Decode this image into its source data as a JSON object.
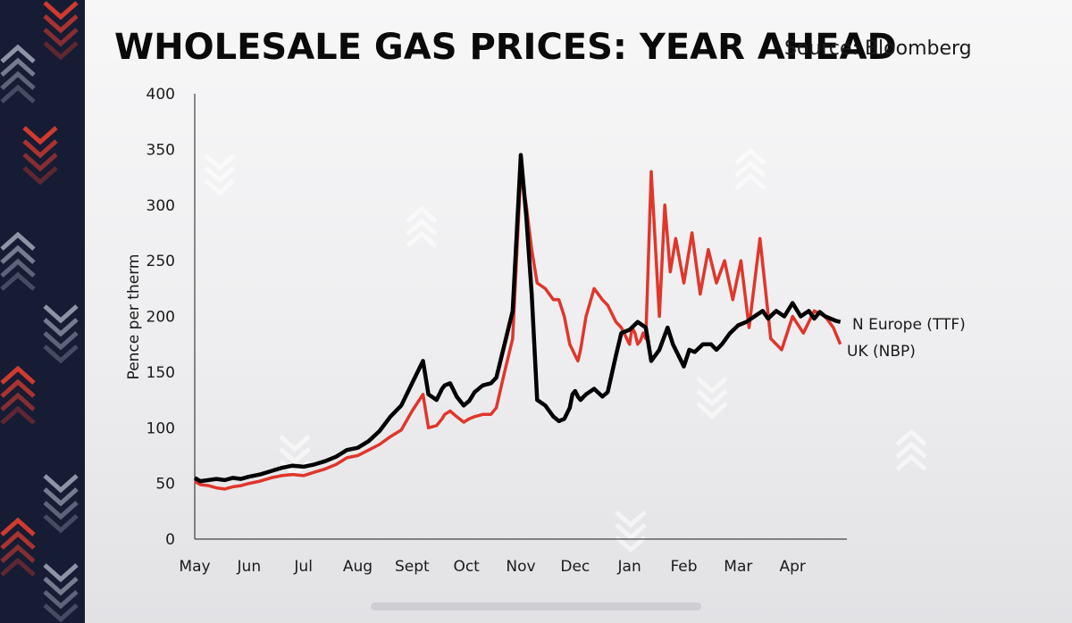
{
  "colors": {
    "side_band": "#151c33",
    "chevron_red": "#d03a2f",
    "chevron_light": "#8e93a6",
    "uk_nbp": "#e0362b",
    "n_europe_ttf": "#000000"
  },
  "chart_data": {
    "type": "line",
    "title": "WHOLESALE GAS PRICES: YEAR AHEAD",
    "source": "Source: Bloomberg",
    "ylabel": "Pence per therm",
    "xlabel": "",
    "ylim": [
      0,
      400
    ],
    "yticks": [
      "0",
      "50",
      "100",
      "150",
      "200",
      "250",
      "300",
      "350",
      "400"
    ],
    "ytick_values": [
      0,
      50,
      100,
      150,
      200,
      250,
      300,
      350,
      400
    ],
    "xlim": [
      0,
      12
    ],
    "months": [
      "May",
      "Jun",
      "Jul",
      "Aug",
      "Sept",
      "Oct",
      "Nov",
      "Dec",
      "Jan",
      "Feb",
      "Mar",
      "Apr"
    ],
    "month_positions": [
      0,
      1,
      2,
      3,
      4,
      5,
      6,
      7,
      8,
      9,
      10,
      11
    ],
    "series": [
      {
        "name": "N Europe (TTF)",
        "legend_label": "N Europe (TTF)",
        "x": [
          0,
          0.1,
          0.25,
          0.4,
          0.55,
          0.7,
          0.85,
          1.0,
          1.2,
          1.4,
          1.6,
          1.8,
          2.0,
          2.2,
          2.4,
          2.6,
          2.8,
          3.0,
          3.2,
          3.4,
          3.6,
          3.8,
          4.0,
          4.2,
          4.3,
          4.45,
          4.55,
          4.6,
          4.7,
          4.82,
          4.95,
          5.05,
          5.15,
          5.3,
          5.45,
          5.55,
          5.7,
          5.85,
          6.0,
          6.1,
          6.2,
          6.3,
          6.45,
          6.6,
          6.7,
          6.8,
          6.9,
          6.95,
          7.0,
          7.05,
          7.1,
          7.2,
          7.35,
          7.5,
          7.6,
          7.75,
          7.85,
          8.0,
          8.15,
          8.3,
          8.4,
          8.55,
          8.7,
          8.8,
          8.95,
          9.0,
          9.1,
          9.2,
          9.35,
          9.5,
          9.6,
          9.7,
          9.85,
          10.0,
          10.15,
          10.3,
          10.45,
          10.55,
          10.7,
          10.85,
          11.0,
          11.15,
          11.3,
          11.4,
          11.5,
          11.6,
          11.7,
          11.8,
          11.88
        ],
        "values": [
          55,
          52,
          53,
          54,
          53,
          55,
          54,
          56,
          58,
          61,
          64,
          66,
          65,
          67,
          70,
          74,
          80,
          82,
          88,
          97,
          110,
          120,
          140,
          160,
          130,
          125,
          135,
          138,
          140,
          128,
          120,
          124,
          132,
          138,
          140,
          145,
          175,
          205,
          345,
          290,
          220,
          125,
          120,
          110,
          106,
          108,
          118,
          130,
          133,
          128,
          125,
          130,
          135,
          128,
          132,
          165,
          185,
          188,
          195,
          190,
          160,
          170,
          190,
          175,
          160,
          155,
          170,
          168,
          175,
          175,
          170,
          175,
          185,
          192,
          195,
          200,
          205,
          198,
          205,
          200,
          212,
          200,
          205,
          198,
          204,
          200,
          198,
          196,
          195
        ]
      },
      {
        "name": "UK (NBP)",
        "legend_label": "UK (NBP)",
        "x": [
          0,
          0.1,
          0.25,
          0.4,
          0.55,
          0.7,
          0.85,
          1.0,
          1.2,
          1.4,
          1.6,
          1.8,
          2.0,
          2.2,
          2.4,
          2.6,
          2.8,
          3.0,
          3.2,
          3.4,
          3.6,
          3.8,
          4.0,
          4.2,
          4.3,
          4.45,
          4.55,
          4.6,
          4.7,
          4.82,
          4.95,
          5.05,
          5.15,
          5.3,
          5.45,
          5.55,
          5.7,
          5.85,
          6.0,
          6.1,
          6.2,
          6.3,
          6.45,
          6.6,
          6.7,
          6.8,
          6.9,
          6.95,
          7.0,
          7.05,
          7.1,
          7.2,
          7.35,
          7.5,
          7.6,
          7.75,
          7.85,
          7.9,
          7.95,
          8.0,
          8.05,
          8.1,
          8.15,
          8.2,
          8.25,
          8.3,
          8.4,
          8.55,
          8.65,
          8.75,
          8.85,
          9.0,
          9.15,
          9.3,
          9.45,
          9.6,
          9.75,
          9.9,
          10.05,
          10.2,
          10.4,
          10.6,
          10.8,
          11.0,
          11.2,
          11.4,
          11.6,
          11.75,
          11.88
        ],
        "values": [
          52,
          49,
          48,
          46,
          45,
          47,
          48,
          50,
          52,
          55,
          57,
          58,
          57,
          60,
          63,
          67,
          73,
          75,
          80,
          85,
          92,
          98,
          115,
          130,
          100,
          102,
          108,
          112,
          115,
          110,
          105,
          108,
          110,
          112,
          112,
          118,
          150,
          180,
          330,
          300,
          260,
          230,
          225,
          215,
          215,
          200,
          175,
          170,
          165,
          160,
          170,
          200,
          225,
          215,
          210,
          195,
          190,
          185,
          180,
          175,
          190,
          185,
          175,
          178,
          185,
          180,
          330,
          200,
          300,
          240,
          270,
          230,
          275,
          220,
          260,
          230,
          250,
          215,
          250,
          190,
          270,
          180,
          170,
          200,
          185,
          205,
          200,
          190,
          175
        ]
      }
    ]
  }
}
